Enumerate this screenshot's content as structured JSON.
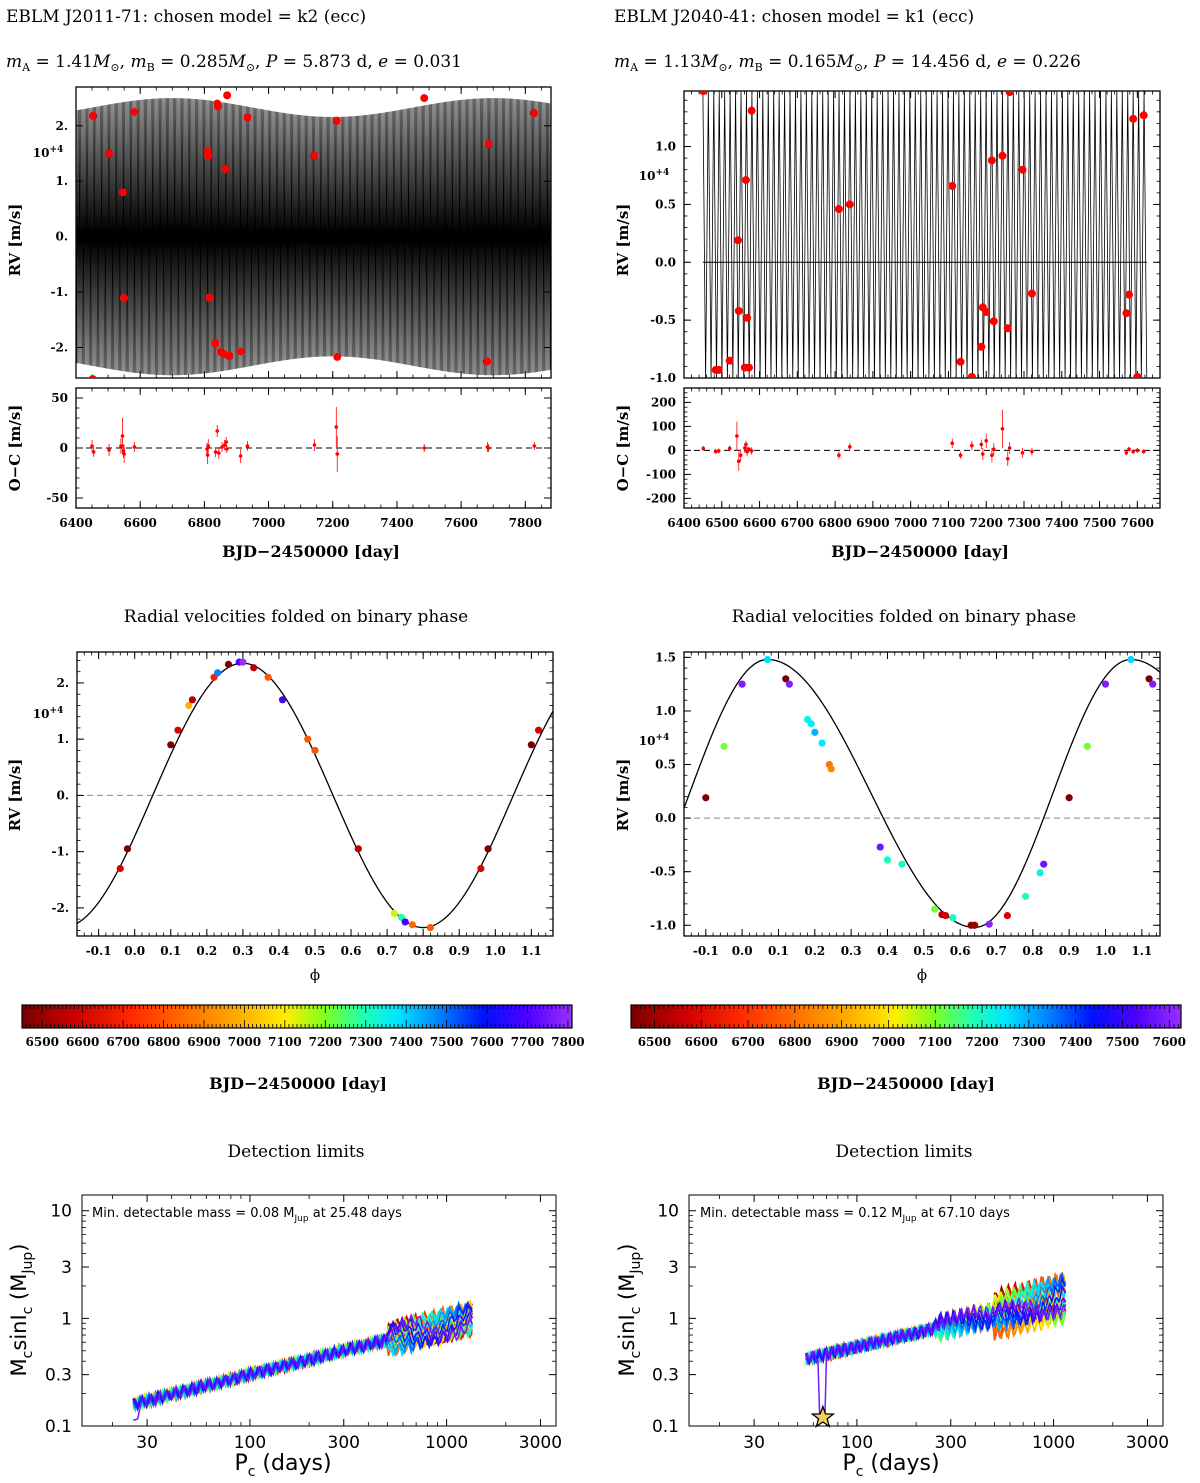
{
  "panels": [
    {
      "title": "EBLM J2011-71: chosen model = k2 (ecc)",
      "params": {
        "mA": "1.41",
        "mB": "0.285",
        "P": "5.873 d",
        "e": "0.031"
      },
      "fold_title": "Radial velocities folded on binary phase",
      "det_title": "Detection limits",
      "det_annotation": {
        "prefix": "Min. detectable mass = 0.08 M",
        "sub": "Jup",
        "suffix": " at 25.48 days"
      }
    },
    {
      "title": "EBLM J2040-41: chosen model = k1 (ecc)",
      "params": {
        "mA": "1.13",
        "mB": "0.165",
        "P": "14.456 d",
        "e": "0.226"
      },
      "fold_title": "Radial velocities folded on binary phase",
      "det_title": "Detection limits",
      "det_annotation": {
        "prefix": "Min. detectable mass = 0.12 M",
        "sub": "Jup",
        "suffix": " at 67.10 days"
      }
    }
  ],
  "labels": {
    "rv_ylabel": "RV [m/s]",
    "oc_ylabel": "O−C [m/s]",
    "time_xlabel": "BJD−2450000 [day]",
    "phase_xlabel": "ϕ",
    "colorbar_label": "BJD−2450000 [day]",
    "rv_multiplier": "10+4",
    "det_xlabel": "P",
    "det_xlabel_sub": "c",
    "det_xlabel_unit": " (days)",
    "det_ylabel": "M",
    "det_ylabel_sub1": "c",
    "det_ylabel_mid": "sinI",
    "det_ylabel_sub2": "c",
    "det_ylabel_unit": " (M",
    "det_ylabel_unit_sub": "Jup",
    "det_ylabel_close": ")"
  },
  "colors": {
    "data": "#ff0000",
    "model": "#000000",
    "zero_line": "#888888",
    "star": "#f5d060"
  },
  "chart_data": [
    {
      "type": "scatter",
      "name": "rv-time-left",
      "xlim": [
        6400,
        7880
      ],
      "ylim": [
        -2.55,
        2.7
      ],
      "xticks": [
        6400,
        6600,
        6800,
        7000,
        7200,
        7400,
        7600,
        7800
      ],
      "yticks": [
        2,
        1,
        0,
        -1,
        -2
      ],
      "ytick_labels": [
        "2.",
        "1.",
        "0.",
        "-1.",
        "-2."
      ],
      "model": {
        "amplitude_mean": 2.33,
        "amplitude_var": 0.17,
        "modulation_period": 1000,
        "phase_ref": 6450,
        "period": 5.873
      },
      "points": [
        [
          6452,
          2.18
        ],
        [
          6503,
          1.5
        ],
        [
          6546,
          0.8
        ],
        [
          6550,
          -1.11
        ],
        [
          6582,
          2.25
        ],
        [
          6810,
          1.55
        ],
        [
          6812,
          1.45
        ],
        [
          6815,
          -1.1
        ],
        [
          6835,
          -1.92
        ],
        [
          6840,
          2.4
        ],
        [
          6842,
          2.35
        ],
        [
          6850,
          -2.08
        ],
        [
          6862,
          -2.12
        ],
        [
          6866,
          1.22
        ],
        [
          6871,
          2.55
        ],
        [
          6878,
          -2.15
        ],
        [
          6913,
          -2.07
        ],
        [
          6934,
          2.15
        ],
        [
          7143,
          1.46
        ],
        [
          7213,
          2.09
        ],
        [
          7214,
          -2.17
        ],
        [
          7485,
          2.5
        ],
        [
          7682,
          -2.25
        ],
        [
          7685,
          1.67
        ],
        [
          7828,
          2.23
        ],
        [
          6452,
          -2.57
        ]
      ]
    },
    {
      "type": "scatter",
      "name": "oc-time-left",
      "xlim": [
        6400,
        7880
      ],
      "ylim": [
        -60,
        60
      ],
      "xticks": [
        6400,
        6600,
        6800,
        7000,
        7200,
        7400,
        7600,
        7800
      ],
      "yticks": [
        50,
        0,
        -50
      ],
      "points": [
        [
          6450,
          2,
          6
        ],
        [
          6455,
          -4,
          5
        ],
        [
          6503,
          -2,
          6
        ],
        [
          6540,
          2,
          8
        ],
        [
          6545,
          12,
          18
        ],
        [
          6548,
          -3,
          7
        ],
        [
          6550,
          -6,
          9
        ],
        [
          6582,
          1,
          5
        ],
        [
          6808,
          -1,
          6
        ],
        [
          6810,
          -7,
          9
        ],
        [
          6812,
          2,
          7
        ],
        [
          6835,
          -4,
          5
        ],
        [
          6840,
          17,
          6
        ],
        [
          6845,
          -5,
          6
        ],
        [
          6855,
          1,
          5
        ],
        [
          6863,
          3,
          5
        ],
        [
          6868,
          6,
          5
        ],
        [
          6870,
          -1,
          4
        ],
        [
          6913,
          -8,
          7
        ],
        [
          6934,
          2,
          5
        ],
        [
          7143,
          3,
          6
        ],
        [
          7211,
          21,
          20
        ],
        [
          7214,
          -6,
          18
        ],
        [
          7485,
          0,
          4
        ],
        [
          7682,
          1,
          5
        ],
        [
          7685,
          0,
          4
        ],
        [
          7828,
          2,
          4
        ]
      ]
    },
    {
      "type": "scatter",
      "name": "rv-time-right",
      "xlim": [
        6400,
        7660
      ],
      "ylim": [
        -1.0,
        1.48
      ],
      "xticks": [
        6400,
        6500,
        6600,
        6700,
        6800,
        6900,
        7000,
        7100,
        7200,
        7300,
        7400,
        7500,
        7600
      ],
      "yticks": [
        1.0,
        0.5,
        0.0,
        -0.5,
        -1.0
      ],
      "ytick_labels": [
        "1.0",
        "0.5",
        "0.0",
        "-0.5",
        "-1.0"
      ],
      "model": {
        "max": 1.48,
        "min": -1.02,
        "phase_ref": 6451,
        "period": 14.456,
        "model_start": 6450,
        "model_end": 7625
      },
      "points": [
        [
          6451,
          1.48
        ],
        [
          6484,
          -0.93
        ],
        [
          6492,
          -0.93
        ],
        [
          6521,
          -0.85
        ],
        [
          6543,
          0.19
        ],
        [
          6545,
          -0.42
        ],
        [
          6561,
          -0.91
        ],
        [
          6564,
          0.71
        ],
        [
          6567,
          -0.48
        ],
        [
          6572,
          -0.91
        ],
        [
          6579,
          1.31
        ],
        [
          6810,
          0.46
        ],
        [
          6839,
          0.5
        ],
        [
          7110,
          0.66
        ],
        [
          7132,
          -0.86
        ],
        [
          7162,
          -0.99
        ],
        [
          7187,
          -0.73
        ],
        [
          7191,
          -0.39
        ],
        [
          7200,
          -0.43
        ],
        [
          7215,
          0.88
        ],
        [
          7220,
          -0.51
        ],
        [
          7243,
          0.92
        ],
        [
          7257,
          -0.57
        ],
        [
          7262,
          1.47
        ],
        [
          7296,
          0.8
        ],
        [
          7321,
          -0.27
        ],
        [
          7571,
          -0.44
        ],
        [
          7578,
          -0.28
        ],
        [
          7589,
          1.24
        ],
        [
          7600,
          -0.99
        ],
        [
          7617,
          1.27
        ]
      ]
    },
    {
      "type": "scatter",
      "name": "oc-time-right",
      "xlim": [
        6400,
        7660
      ],
      "ylim": [
        -240,
        260
      ],
      "xticks": [
        6400,
        6500,
        6600,
        6700,
        6800,
        6900,
        7000,
        7100,
        7200,
        7300,
        7400,
        7500,
        7600
      ],
      "yticks": [
        200,
        100,
        0,
        -100,
        -200
      ],
      "points": [
        [
          6451,
          8,
          10
        ],
        [
          6484,
          -5,
          10
        ],
        [
          6492,
          -2,
          10
        ],
        [
          6521,
          8,
          12
        ],
        [
          6540,
          60,
          60
        ],
        [
          6545,
          -45,
          40
        ],
        [
          6550,
          -20,
          25
        ],
        [
          6561,
          10,
          20
        ],
        [
          6564,
          25,
          15
        ],
        [
          6567,
          -5,
          20
        ],
        [
          6572,
          5,
          10
        ],
        [
          6579,
          -2,
          15
        ],
        [
          6810,
          -20,
          15
        ],
        [
          6839,
          15,
          15
        ],
        [
          7110,
          30,
          20
        ],
        [
          7132,
          -20,
          15
        ],
        [
          7162,
          20,
          20
        ],
        [
          7187,
          25,
          20
        ],
        [
          7191,
          -15,
          25
        ],
        [
          7200,
          40,
          30
        ],
        [
          7215,
          -20,
          30
        ],
        [
          7220,
          5,
          25
        ],
        [
          7243,
          90,
          80
        ],
        [
          7257,
          -35,
          30
        ],
        [
          7262,
          10,
          25
        ],
        [
          7296,
          -10,
          20
        ],
        [
          7321,
          -5,
          15
        ],
        [
          7571,
          -10,
          10
        ],
        [
          7578,
          5,
          10
        ],
        [
          7589,
          -5,
          10
        ],
        [
          7600,
          0,
          10
        ],
        [
          7617,
          -5,
          10
        ]
      ]
    },
    {
      "type": "scatter",
      "name": "rv-phase-left",
      "xlim": [
        -0.16,
        1.16
      ],
      "ylim": [
        -2.5,
        2.55
      ],
      "xticks": [
        -0.1,
        0.0,
        0.1,
        0.2,
        0.3,
        0.4,
        0.5,
        0.6,
        0.7,
        0.8,
        0.9,
        1.0,
        1.1
      ],
      "yticks": [
        2,
        1,
        0,
        -1,
        -2
      ],
      "ytick_labels": [
        "2.",
        "1.",
        "0.",
        "-1.",
        "-2."
      ],
      "model": {
        "K": 2.35,
        "phase_max": 0.3
      },
      "colorbar": {
        "range": [
          6450,
          7810
        ],
        "ticks": [
          6500,
          6600,
          6700,
          6800,
          6900,
          7000,
          7100,
          7200,
          7300,
          7400,
          7500,
          7600,
          7700,
          7800
        ]
      },
      "points": [
        [
          -0.04,
          -1.3,
          6600
        ],
        [
          -0.02,
          -0.95,
          6450
        ],
        [
          0.1,
          0.9,
          6450
        ],
        [
          0.12,
          1.16,
          6600
        ],
        [
          0.15,
          1.6,
          7000
        ],
        [
          0.16,
          1.7,
          6550
        ],
        [
          0.22,
          2.1,
          6700
        ],
        [
          0.23,
          2.18,
          7480
        ],
        [
          0.26,
          2.33,
          6450
        ],
        [
          0.29,
          2.37,
          7683
        ],
        [
          0.3,
          2.37,
          7830
        ],
        [
          0.33,
          2.27,
          6550
        ],
        [
          0.37,
          2.1,
          6810
        ],
        [
          0.41,
          1.7,
          7685
        ],
        [
          0.48,
          1.0,
          6810
        ],
        [
          0.5,
          0.8,
          6800
        ],
        [
          0.62,
          -0.95,
          6545
        ],
        [
          0.72,
          -2.1,
          7140
        ],
        [
          0.74,
          -2.17,
          7290
        ],
        [
          0.75,
          -2.25,
          7680
        ],
        [
          0.77,
          -2.3,
          6850
        ],
        [
          0.82,
          -2.35,
          6810
        ],
        [
          0.96,
          -1.3,
          6600
        ],
        [
          0.98,
          -0.95,
          6450
        ],
        [
          1.1,
          0.9,
          6450
        ],
        [
          1.12,
          1.16,
          6600
        ]
      ]
    },
    {
      "type": "scatter",
      "name": "rv-phase-right",
      "xlim": [
        -0.16,
        1.15
      ],
      "ylim": [
        -1.1,
        1.55
      ],
      "xticks": [
        -0.1,
        0.0,
        0.1,
        0.2,
        0.3,
        0.4,
        0.5,
        0.6,
        0.7,
        0.8,
        0.9,
        1.0,
        1.1
      ],
      "yticks": [
        1.5,
        1.0,
        0.5,
        0.0,
        -0.5,
        -1.0
      ],
      "ytick_labels": [
        "1.5",
        "1.0",
        "0.5",
        "0.0",
        "-0.5",
        "-1.0"
      ],
      "model": {
        "max": 1.48,
        "min": -1.02,
        "phase_max": 0.07,
        "phase_min": 0.64
      },
      "colorbar": {
        "range": [
          6450,
          7625
        ],
        "ticks": [
          6500,
          6600,
          6700,
          6800,
          6900,
          7000,
          7100,
          7200,
          7300,
          7400,
          7500,
          7600
        ]
      },
      "points": [
        [
          -0.1,
          0.19,
          6451
        ],
        [
          -0.05,
          0.67,
          7110
        ],
        [
          0.0,
          1.25,
          7590
        ],
        [
          0.07,
          1.48,
          7262
        ],
        [
          0.12,
          1.3,
          6450
        ],
        [
          0.13,
          1.25,
          7589
        ],
        [
          0.18,
          0.92,
          7215
        ],
        [
          0.19,
          0.88,
          7243
        ],
        [
          0.2,
          0.8,
          7300
        ],
        [
          0.22,
          0.7,
          7250
        ],
        [
          0.24,
          0.5,
          6810
        ],
        [
          0.245,
          0.46,
          6839
        ],
        [
          0.38,
          -0.27,
          7571
        ],
        [
          0.4,
          -0.39,
          7191
        ],
        [
          0.44,
          -0.43,
          7200
        ],
        [
          0.53,
          -0.85,
          7110
        ],
        [
          0.55,
          -0.9,
          6545
        ],
        [
          0.56,
          -0.91,
          6561
        ],
        [
          0.58,
          -0.93,
          7200
        ],
        [
          0.63,
          -1.0,
          6484
        ],
        [
          0.64,
          -1.0,
          6492
        ],
        [
          0.68,
          -0.99,
          7600
        ],
        [
          0.73,
          -0.91,
          6572
        ],
        [
          0.78,
          -0.73,
          7187
        ],
        [
          0.82,
          -0.51,
          7220
        ],
        [
          0.83,
          -0.43,
          7571
        ],
        [
          0.9,
          0.19,
          6451
        ],
        [
          0.95,
          0.67,
          7110
        ],
        [
          1.0,
          1.25,
          7590
        ],
        [
          1.07,
          1.48,
          7262
        ],
        [
          1.12,
          1.3,
          6450
        ],
        [
          1.13,
          1.25,
          7589
        ]
      ]
    },
    {
      "type": "line",
      "name": "detection-left",
      "xscale": "log",
      "yscale": "log",
      "xlim": [
        14,
        3600
      ],
      "ylim": [
        0.1,
        14
      ],
      "xticks": [
        30,
        100,
        300,
        1000,
        3000
      ],
      "yticks": [
        0.1,
        0.3,
        1,
        3,
        10
      ],
      "period_range": [
        25.48,
        1350
      ],
      "mass_at_min_period": 0.16,
      "mass_at_max_period": 1.0,
      "min_mass": {
        "P": 25.48,
        "M": 0.08
      }
    },
    {
      "type": "line",
      "name": "detection-right",
      "xscale": "log",
      "yscale": "log",
      "xlim": [
        14,
        3600
      ],
      "ylim": [
        0.1,
        14
      ],
      "xticks": [
        30,
        100,
        300,
        1000,
        3000
      ],
      "yticks": [
        0.1,
        0.3,
        1,
        3,
        10
      ],
      "period_range": [
        55,
        1150
      ],
      "mass_at_min_period": 0.42,
      "mass_at_max_period": 1.55,
      "min_mass": {
        "P": 67.1,
        "M": 0.12
      }
    }
  ]
}
